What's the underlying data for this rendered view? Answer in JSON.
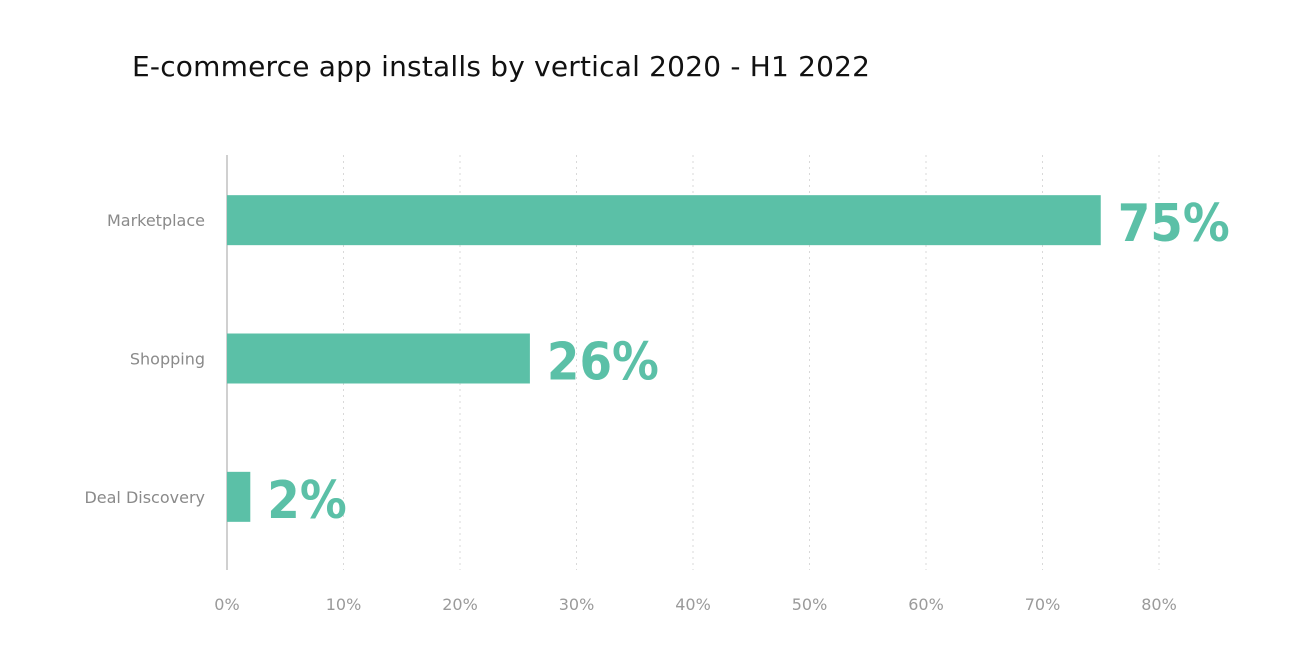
{
  "chart_data": {
    "type": "bar",
    "orientation": "horizontal",
    "title": "E-commerce app installs by vertical 2020 - H1 2022",
    "xlabel": "",
    "ylabel": "",
    "categories": [
      "Marketplace",
      "Shopping",
      "Deal Discovery"
    ],
    "values": [
      75,
      26,
      2
    ],
    "data_labels": [
      "75%",
      "26%",
      "2%"
    ],
    "xlim": [
      0,
      80
    ],
    "xticks": [
      0,
      10,
      20,
      30,
      40,
      50,
      60,
      70,
      80
    ],
    "xtick_labels": [
      "0%",
      "10%",
      "20%",
      "30%",
      "40%",
      "50%",
      "60%",
      "70%",
      "80%"
    ],
    "grid": "vertical dotted",
    "legend": "none",
    "bar_color": "#5bc0a7",
    "label_color": "#5bc0a7"
  }
}
